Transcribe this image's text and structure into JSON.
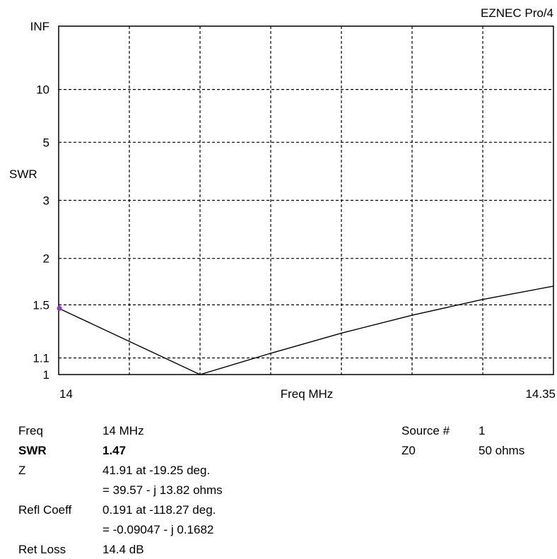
{
  "app_title": "EZNEC Pro/4",
  "chart_data": {
    "type": "line",
    "xlabel": "Freq MHz",
    "ylabel": "SWR",
    "x_ticks": [
      "14",
      "14.35"
    ],
    "xlim": [
      14,
      14.35
    ],
    "y_scale": "reflection-coefficient (SWR)",
    "y_ticks": [
      "INF",
      "10",
      "5",
      "3",
      "2",
      "1.5",
      "1.1",
      "1"
    ],
    "y_tick_values": [
      1000000,
      10,
      5,
      3,
      2,
      1.5,
      1.1,
      1
    ],
    "x_gridlines": 7,
    "grid": true,
    "series": [
      {
        "x": [
          14,
          14.1,
          14.15,
          14.2,
          14.25,
          14.3,
          14.35
        ],
        "y": [
          1.47,
          1.0,
          1.13,
          1.27,
          1.41,
          1.55,
          1.68
        ]
      }
    ],
    "marker": {
      "x": 14,
      "y": 1.47,
      "color": "#9b30d9"
    }
  },
  "readout": {
    "freq_label": "Freq",
    "freq_value": "14 MHz",
    "swr_label": "SWR",
    "swr_value": "1.47",
    "z_label": "Z",
    "z_value": "41.91 at -19.25 deg.",
    "z_value2": "= 39.57 - j 13.82 ohms",
    "refl_label": "Refl Coeff",
    "refl_value": "0.191 at -118.27 deg.",
    "refl_value2": "= -0.09047 - j 0.1682",
    "retloss_label": "Ret Loss",
    "retloss_value": "14.4 dB",
    "source_label": "Source #",
    "source_value": "1",
    "z0_label": "Z0",
    "z0_value": "50 ohms"
  }
}
